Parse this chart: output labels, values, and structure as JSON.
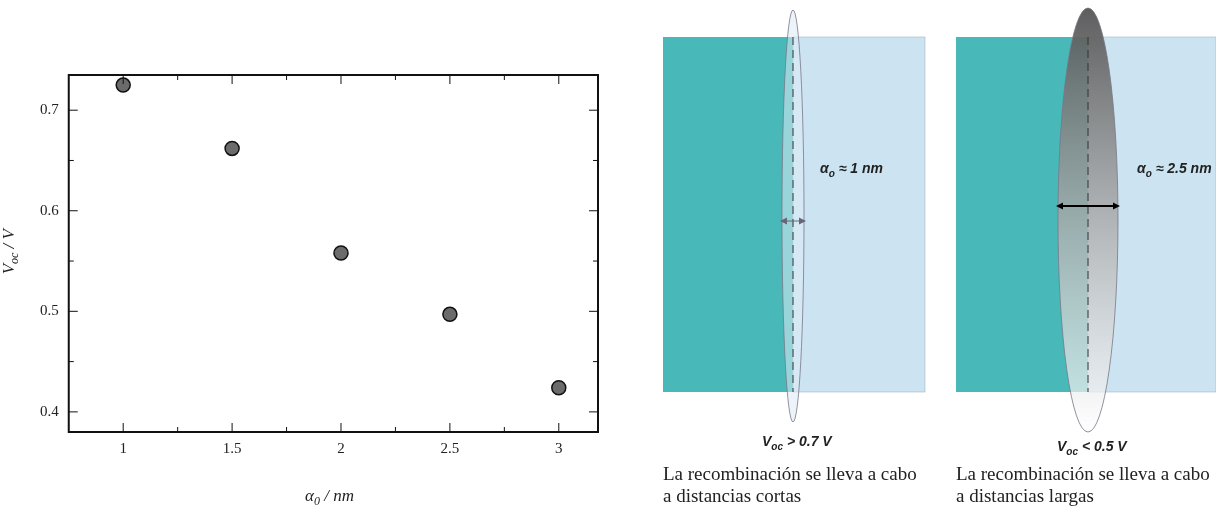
{
  "chart_data": {
    "type": "scatter",
    "xlabel": "α$_{0}$ / nm",
    "ylabel": "V$_{oc}$ / V",
    "x": [
      1,
      1.5,
      2,
      2.5,
      3
    ],
    "series": [
      {
        "color": "#6b6b6b",
        "values": [
          0.725,
          0.662,
          0.558,
          0.497,
          0.424
        ]
      }
    ],
    "xlim": [
      0.75,
      3.18
    ],
    "xticks": [
      1,
      {
        "value": 1.25,
        "label": null
      },
      1.5,
      {
        "value": 1.75,
        "label": null
      },
      2,
      {
        "value": 2.25,
        "label": null
      },
      2.5,
      {
        "value": 2.75,
        "label": null
      },
      3
    ],
    "ylim": [
      0.38,
      0.735
    ],
    "yticks": [
      0.4,
      {
        "value": 0.45,
        "label": null
      },
      0.5,
      {
        "value": 0.55,
        "label": null
      },
      0.6,
      {
        "value": 0.65,
        "label": null
      },
      0.7
    ],
    "grid": false,
    "legend": false,
    "marker": "circle",
    "annotations": [
      "α$_{o}$ ≈ 1 nm",
      "α$_{o}$ ≈ 2.5 nm",
      "V$_{oc}$ > 0.7 V",
      "V$_{oc}$ < 0.5 V",
      "La recombinación se lleva a cabo a distancias cortas",
      "La recombinación se lleva a cabo a distancias largas"
    ]
  }
}
